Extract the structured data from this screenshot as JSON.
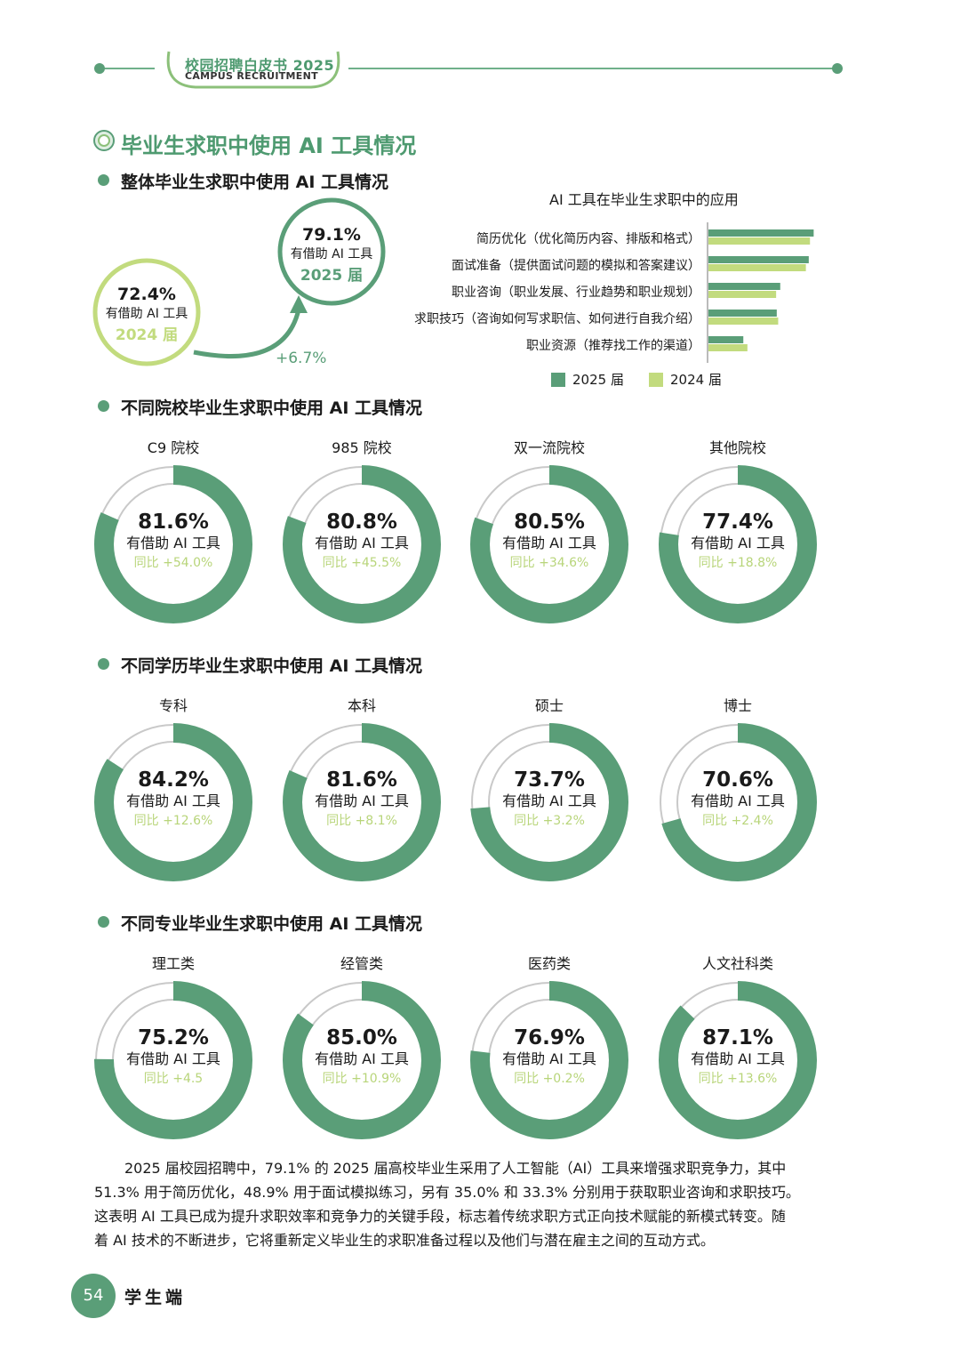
{
  "header": {
    "title": "校园招聘白皮书 2025",
    "subtitle": "CAMPUS RECRUITMENT"
  },
  "section_title": "毕业生求职中使用 AI 工具情况",
  "overall": {
    "heading": "整体毕业生求职中使用 AI 工具情况",
    "y2024": {
      "pct": "72.4%",
      "label": "有借助 AI 工具",
      "year": "2024 届"
    },
    "y2025": {
      "pct": "79.1%",
      "label": "有借助 AI 工具",
      "year": "2025 届"
    },
    "growth": "+6.7%"
  },
  "chart_data": {
    "type": "bar",
    "orientation": "horizontal",
    "title": "AI 工具在毕业生求职中的应用",
    "categories": [
      "简历优化（优化简历内容、排版和格式）",
      "面试准备（提供面试问题的模拟和答案建议）",
      "职业咨询（职业发展、行业趋势和职业规划）",
      "求职技巧（咨询如何写求职信、如何进行自我介绍）",
      "职业资源（推荐找工作的渠道）"
    ],
    "series": [
      {
        "name": "2025 届",
        "color": "#5a9e78",
        "values": [
          51.3,
          48.9,
          35.0,
          33.3,
          17.0
        ]
      },
      {
        "name": "2024 届",
        "color": "#c2db7e",
        "values": [
          49.5,
          47.5,
          33.0,
          34.0,
          19.0
        ]
      }
    ],
    "legend_position": "bottom"
  },
  "groups": [
    {
      "heading": "不同院校毕业生求职中使用 AI 工具情况",
      "items": [
        {
          "name": "C9 院校",
          "value": 81.6,
          "pct": "81.6%",
          "label": "有借助 AI 工具",
          "yoy": "同比 +54.0%"
        },
        {
          "name": "985 院校",
          "value": 80.8,
          "pct": "80.8%",
          "label": "有借助 AI 工具",
          "yoy": "同比 +45.5%"
        },
        {
          "name": "双一流院校",
          "value": 80.5,
          "pct": "80.5%",
          "label": "有借助 AI 工具",
          "yoy": "同比 +34.6%"
        },
        {
          "name": "其他院校",
          "value": 77.4,
          "pct": "77.4%",
          "label": "有借助 AI 工具",
          "yoy": "同比 +18.8%"
        }
      ]
    },
    {
      "heading": "不同学历毕业生求职中使用 AI 工具情况",
      "items": [
        {
          "name": "专科",
          "value": 84.2,
          "pct": "84.2%",
          "label": "有借助 AI 工具",
          "yoy": "同比 +12.6%"
        },
        {
          "name": "本科",
          "value": 81.6,
          "pct": "81.6%",
          "label": "有借助 AI 工具",
          "yoy": "同比 +8.1%"
        },
        {
          "name": "硕士",
          "value": 73.7,
          "pct": "73.7%",
          "label": "有借助 AI 工具",
          "yoy": "同比 +3.2%"
        },
        {
          "name": "博士",
          "value": 70.6,
          "pct": "70.6%",
          "label": "有借助 AI 工具",
          "yoy": "同比 +2.4%"
        }
      ]
    },
    {
      "heading": "不同专业毕业生求职中使用 AI 工具情况",
      "items": [
        {
          "name": "理工类",
          "value": 75.2,
          "pct": "75.2%",
          "label": "有借助 AI 工具",
          "yoy": "同比 +4.5"
        },
        {
          "name": "经管类",
          "value": 85.0,
          "pct": "85.0%",
          "label": "有借助 AI 工具",
          "yoy": "同比 +10.9%"
        },
        {
          "name": "医药类",
          "value": 76.9,
          "pct": "76.9%",
          "label": "有借助 AI 工具",
          "yoy": "同比 +0.2%"
        },
        {
          "name": "人文社科类",
          "value": 87.1,
          "pct": "87.1%",
          "label": "有借助 AI 工具",
          "yoy": "同比 +13.6%"
        }
      ]
    }
  ],
  "paragraph": [
    "2025 届校园招聘中，79.1% 的 2025 届高校毕业生采用了人工智能（AI）工具来增强求职竞争力，其中",
    "51.3% 用于简历优化，48.9% 用于面试模拟练习，另有 35.0% 和 33.3% 分别用于获取职业咨询和求职技巧。",
    "这表明 AI 工具已成为提升求职效率和竞争力的关键手段，标志着传统求职方式正向技术赋能的新模式转变。随",
    "着 AI 技术的不断进步，它将重新定义毕业生的求职准备过程以及他们与潜在雇主之间的互动方式。"
  ],
  "footer": {
    "page": "54",
    "label": "学生端"
  },
  "colors": {
    "primary": "#5a9e78",
    "light": "#c2db7e",
    "yoy": "#b8d57a"
  }
}
